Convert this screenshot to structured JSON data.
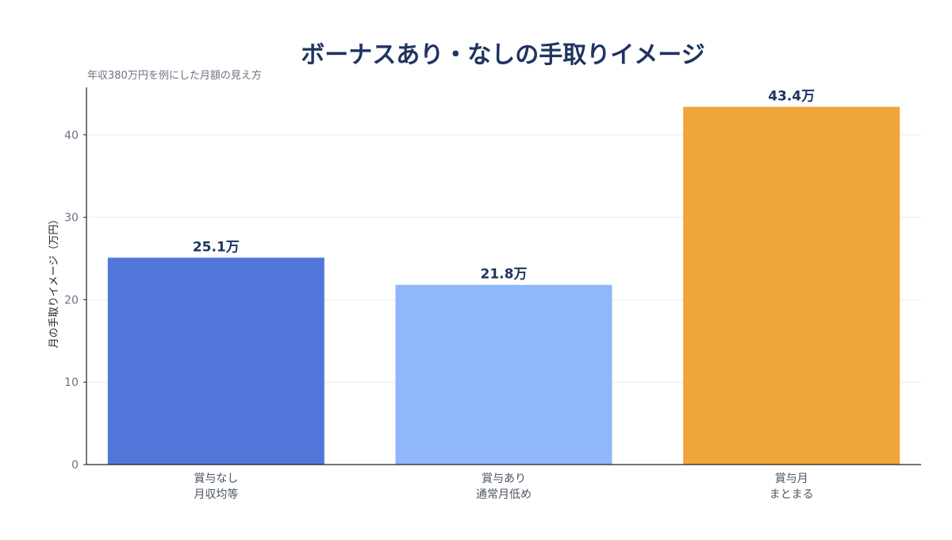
{
  "chart_data": {
    "type": "bar",
    "title": "ボーナスあり・なしの手取りイメージ",
    "subtitle": "年収380万円を例にした月額の見え方",
    "xlabel": "",
    "ylabel": "月の手取りイメージ（万円）",
    "ylim": [
      0,
      46
    ],
    "yticks": [
      0,
      10,
      20,
      30,
      40
    ],
    "grid": true,
    "categories": [
      [
        "賞与なし",
        "月収均等"
      ],
      [
        "賞与あり",
        "通常月低め"
      ],
      [
        "賞与月",
        "まとまる"
      ]
    ],
    "values": [
      25.1,
      21.8,
      43.4
    ],
    "value_labels": [
      "25.1万",
      "21.8万",
      "43.4万"
    ],
    "colors": [
      "#5277da",
      "#90b6fc",
      "#efa53a"
    ]
  }
}
